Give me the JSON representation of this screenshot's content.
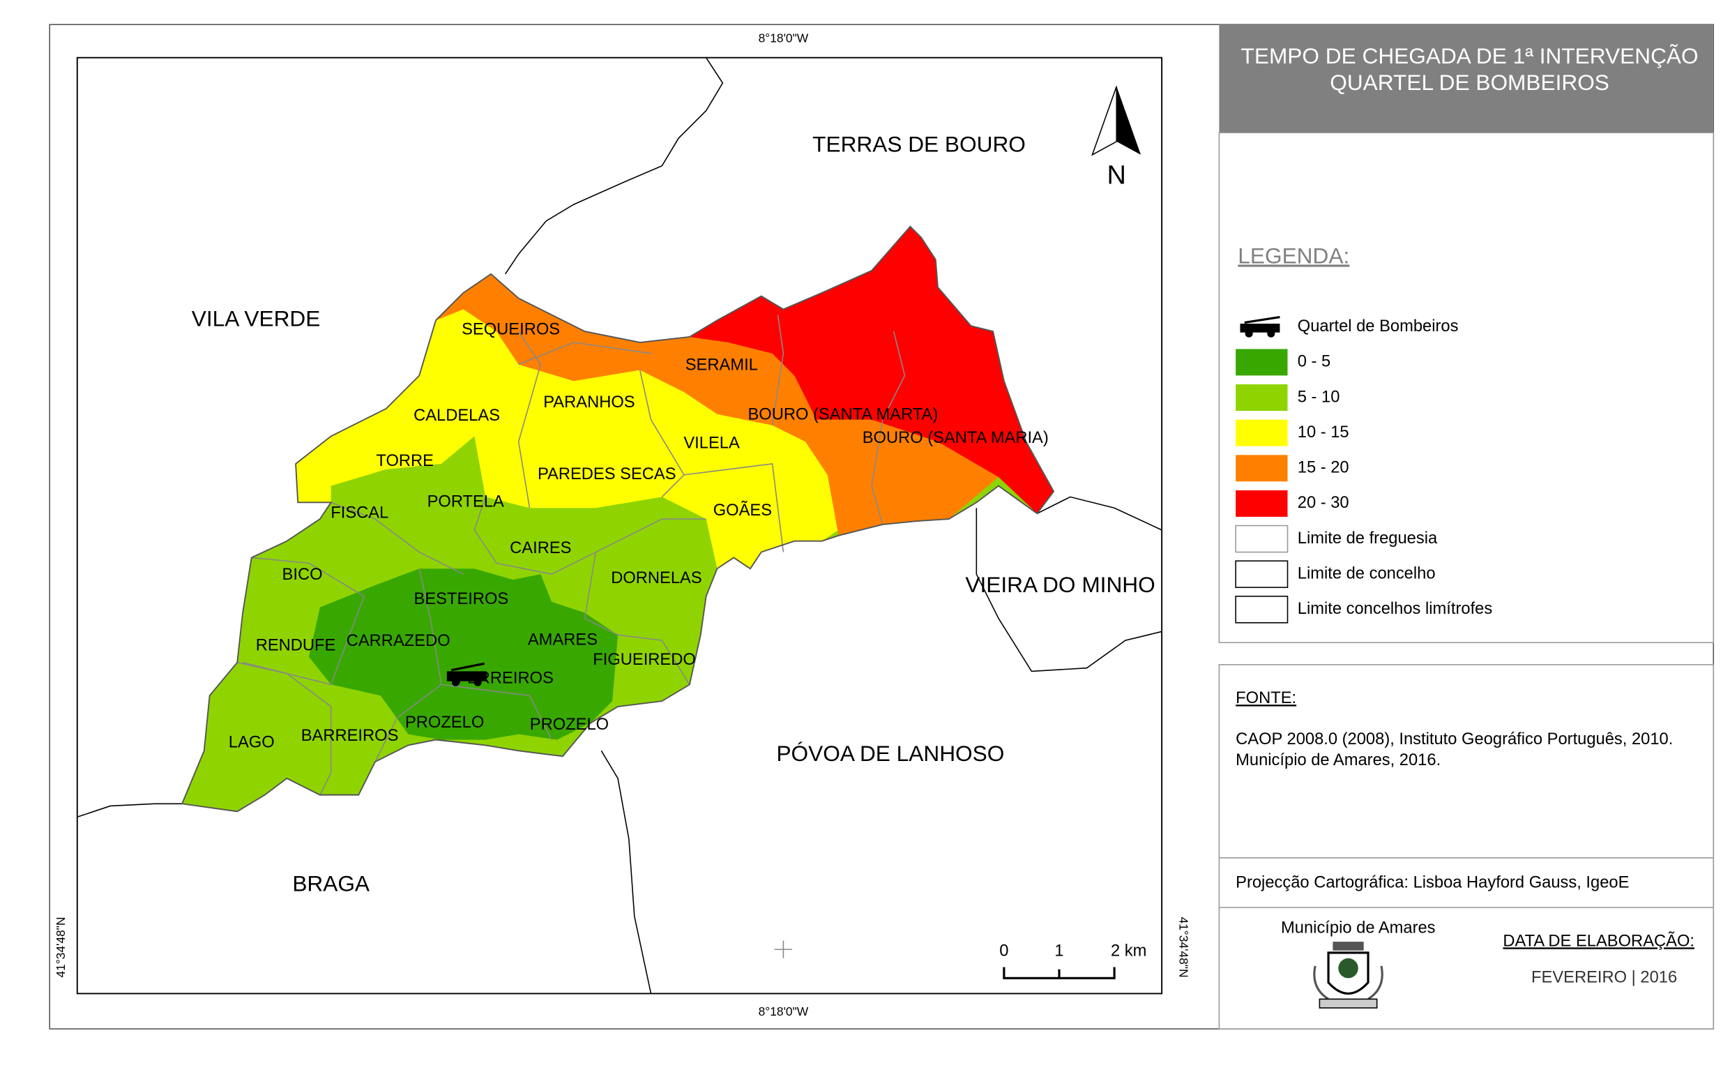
{
  "map": {
    "coords": {
      "top": "8°18'0\"W",
      "bottom": "8°18'0\"W",
      "left": "41°34'48\"N",
      "right": "41°34'48\"N"
    },
    "north": "N",
    "neighbors": [
      "TERRAS DE BOURO",
      "VILA VERDE",
      "VIEIRA DO MINHO",
      "PÓVOA DE LANHOSO",
      "BRAGA"
    ],
    "parishes": [
      "SEQUEIROS",
      "SERAMIL",
      "PARANHOS",
      "CALDELAS",
      "BOURO (SANTA MARTA)",
      "BOURO (SANTA MARIA)",
      "VILELA",
      "TORRE",
      "PAREDES SECAS",
      "PORTELA",
      "FISCAL",
      "GOÃES",
      "CAIRES",
      "BICO",
      "DORNELAS",
      "BESTEIROS",
      "CARRAZEDO",
      "AMARES",
      "RENDUFE",
      "FIGUEIREDO",
      "FERREIROS",
      "PROZELO",
      "PROZELO",
      "BARREIROS",
      "LAGO"
    ],
    "scale_labels": [
      "0",
      "1",
      "2 km"
    ]
  },
  "panel": {
    "title": [
      "TEMPO DE CHEGADA DE 1ª INTERVENÇÃO",
      "QUARTEL DE BOMBEIROS"
    ],
    "legend_title": "LEGENDA:",
    "legend": [
      {
        "label": "Quartel de Bombeiros"
      },
      {
        "label": "0 - 5",
        "color": "#38a800"
      },
      {
        "label": "5 - 10",
        "color": "#8fd400"
      },
      {
        "label": "10 - 15",
        "color": "#ffff00"
      },
      {
        "label": "15 - 20",
        "color": "#ff8000"
      },
      {
        "label": "20 - 30",
        "color": "#ff0000"
      },
      {
        "label": "Limite de freguesia",
        "color": "#999999"
      },
      {
        "label": "Limite de concelho",
        "color": "#000000"
      },
      {
        "label": "Limite concelhos limítrofes",
        "color": "#000000"
      }
    ],
    "source_title": "FONTE:",
    "source": [
      "CAOP 2008.0 (2008), Instituto Geográfico Português, 2010.",
      "Município de Amares, 2016."
    ],
    "projection": "Projecção Cartográfica: Lisboa Hayford Gauss, IgeoE",
    "municipality": "Município de Amares",
    "date_title": "DATA DE ELABORAÇÃO:",
    "date": "FEVEREIRO | 2016"
  }
}
